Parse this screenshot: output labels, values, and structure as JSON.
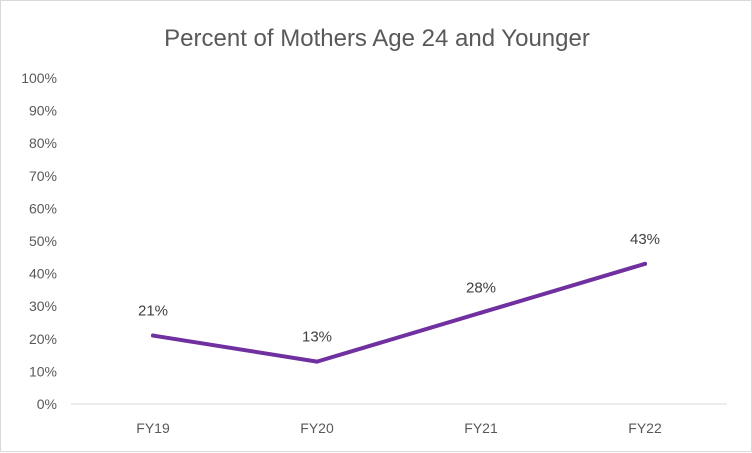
{
  "chart_data": {
    "type": "line",
    "title": "Percent of Mothers Age 24 and Younger",
    "categories": [
      "FY19",
      "FY20",
      "FY21",
      "FY22"
    ],
    "series": [
      {
        "values": [
          21,
          13,
          28,
          43
        ],
        "data_labels": [
          "21%",
          "13%",
          "28%",
          "43%"
        ]
      }
    ],
    "ylim": [
      0,
      100
    ],
    "yticks": [
      0,
      10,
      20,
      30,
      40,
      50,
      60,
      70,
      80,
      90,
      100
    ],
    "ytick_labels": [
      "0%",
      "10%",
      "20%",
      "30%",
      "40%",
      "50%",
      "60%",
      "70%",
      "80%",
      "90%",
      "100%"
    ],
    "grid": false,
    "line_color": "#7030a0",
    "axis_color": "#d9d9d9"
  }
}
